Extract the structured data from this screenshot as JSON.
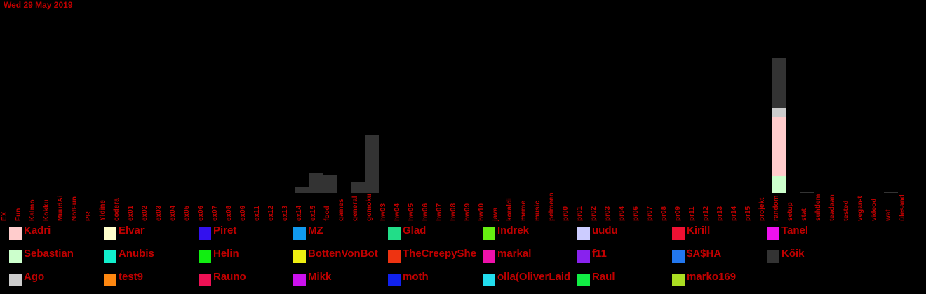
{
  "header": {
    "date": "Wed 29 May 2019"
  },
  "chart_data": {
    "type": "bar",
    "stacked": true,
    "ylim": [
      0,
      205
    ],
    "categories": [
      "EX",
      "Fun",
      "Kalmo",
      "Kokku",
      "MuudAi",
      "NotFun",
      "PR",
      "Yldine",
      "codera",
      "ex01",
      "ex02",
      "ex03",
      "ex04",
      "ex05",
      "ex06",
      "ex07",
      "ex08",
      "ex09",
      "ex11",
      "ex12",
      "ex13",
      "ex14",
      "ex15",
      "food",
      "games",
      "general",
      "gomoku",
      "hw03",
      "hw04",
      "hw05",
      "hw06",
      "hw07",
      "hw08",
      "hw09",
      "hw10",
      "java",
      "koraldi",
      "meme",
      "music",
      "pelmeen",
      "pr00",
      "pr01",
      "pr02",
      "pr03",
      "pr04",
      "pr06",
      "pr07",
      "pr08",
      "pr09",
      "pr11",
      "pr12",
      "pr13",
      "pr14",
      "pr15",
      "projekt",
      "random",
      "setup",
      "stat",
      "suhtlem",
      "teadaan",
      "tested",
      "vegan-t",
      "videod",
      "wat",
      "ülesand"
    ],
    "series": [
      {
        "name": "Sebastian",
        "color": "#ccffcc",
        "values": {
          "random": 24
        }
      },
      {
        "name": "Kadri",
        "color": "#ffcccc",
        "values": {
          "random": 84
        }
      },
      {
        "name": "Ago",
        "color": "#cccccc",
        "values": {
          "random": 13
        }
      },
      {
        "name": "Kõik",
        "color": "#333333",
        "values": {
          "ex14": 8,
          "ex15": 29,
          "food": 25,
          "general": 15,
          "gomoku": 82,
          "random": 71,
          "stat": 1,
          "wat": 2
        }
      }
    ]
  },
  "legend": [
    {
      "name": "Kadri",
      "color": "#ffcccc"
    },
    {
      "name": "Elvar",
      "color": "#ffffcc"
    },
    {
      "name": "Piret",
      "color": "#3311ee"
    },
    {
      "name": "MZ",
      "color": "#1199ee"
    },
    {
      "name": "Glad",
      "color": "#22dd88"
    },
    {
      "name": "Indrek",
      "color": "#66ee11"
    },
    {
      "name": "uudu",
      "color": "#ccccff"
    },
    {
      "name": "Kirill",
      "color": "#ee1133"
    },
    {
      "name": "Tanel",
      "color": "#ee11ee"
    },
    {
      "name": "Sebastian",
      "color": "#ccffcc"
    },
    {
      "name": "Anubis",
      "color": "#11eecc"
    },
    {
      "name": "Helin",
      "color": "#11ee11"
    },
    {
      "name": "BottenVonBot",
      "color": "#eeee11"
    },
    {
      "name": "TheCreepyShe",
      "color": "#ee3311"
    },
    {
      "name": "markal",
      "color": "#ee11aa"
    },
    {
      "name": "f11",
      "color": "#8822ee"
    },
    {
      "name": "$A$HA",
      "color": "#2277ee"
    },
    {
      "name": "Kõik",
      "color": "#333333"
    },
    {
      "name": "Ago",
      "color": "#cccccc"
    },
    {
      "name": "test9",
      "color": "#ff8811"
    },
    {
      "name": "Rauno",
      "color": "#ee1155"
    },
    {
      "name": "Mikk",
      "color": "#cc11ee"
    },
    {
      "name": "moth",
      "color": "#1122ee"
    },
    {
      "name": "olla(OliverLaid",
      "color": "#22ddee"
    },
    {
      "name": "Raul",
      "color": "#11ee44"
    },
    {
      "name": "marko169",
      "color": "#aadd22"
    }
  ]
}
